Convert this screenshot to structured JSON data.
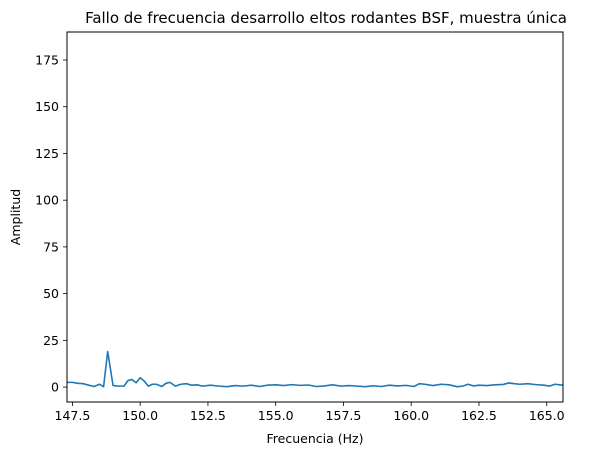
{
  "chart_data": {
    "type": "line",
    "title": "Fallo de frecuencia desarrollo eltos rodantes BSF, muestra única",
    "xlabel": "Frecuencia (Hz)",
    "ylabel": "Amplitud",
    "xlim": [
      147.3,
      165.6
    ],
    "ylim": [
      -8,
      190
    ],
    "xticks": [
      147.5,
      150.0,
      152.5,
      155.0,
      157.5,
      160.0,
      162.5,
      165.0
    ],
    "xtick_labels": [
      "147.5",
      "150.0",
      "152.5",
      "155.0",
      "157.5",
      "160.0",
      "162.5",
      "165.0"
    ],
    "yticks": [
      0,
      25,
      50,
      75,
      100,
      125,
      150,
      175
    ],
    "ytick_labels": [
      "0",
      "25",
      "50",
      "75",
      "100",
      "125",
      "150",
      "175"
    ],
    "grid": false,
    "series": [
      {
        "color": "#1f77b4",
        "x": [
          147.3,
          147.5,
          147.7,
          147.9,
          148.1,
          148.3,
          148.5,
          148.65,
          148.8,
          149.0,
          149.2,
          149.4,
          149.55,
          149.7,
          149.85,
          150.0,
          150.15,
          150.3,
          150.45,
          150.6,
          150.8,
          150.95,
          151.1,
          151.3,
          151.5,
          151.7,
          151.9,
          152.1,
          152.3,
          152.6,
          152.9,
          153.2,
          153.5,
          153.8,
          154.1,
          154.4,
          154.7,
          155.0,
          155.3,
          155.6,
          155.9,
          156.2,
          156.5,
          156.8,
          157.1,
          157.4,
          157.7,
          158.0,
          158.3,
          158.6,
          158.9,
          159.2,
          159.5,
          159.8,
          160.1,
          160.3,
          160.5,
          160.8,
          161.1,
          161.4,
          161.7,
          161.9,
          162.1,
          162.3,
          162.5,
          162.8,
          163.1,
          163.4,
          163.6,
          163.8,
          164.0,
          164.3,
          164.6,
          164.9,
          165.1,
          165.3,
          165.6
        ],
        "y": [
          2.5,
          2.5,
          2.0,
          1.8,
          1.0,
          0.3,
          1.5,
          0.2,
          19.0,
          0.8,
          0.5,
          0.5,
          3.5,
          4.0,
          2.3,
          5.0,
          3.2,
          0.5,
          1.5,
          1.5,
          0.3,
          2.0,
          2.5,
          0.5,
          1.5,
          1.8,
          1.0,
          1.2,
          0.5,
          1.0,
          0.5,
          0.2,
          0.8,
          0.5,
          1.0,
          0.3,
          1.0,
          1.2,
          0.8,
          1.3,
          0.9,
          1.1,
          0.3,
          0.6,
          1.2,
          0.5,
          0.8,
          0.5,
          0.2,
          0.7,
          0.3,
          1.0,
          0.6,
          0.9,
          0.3,
          1.8,
          1.5,
          0.8,
          1.5,
          1.2,
          0.2,
          0.5,
          1.5,
          0.6,
          1.0,
          0.8,
          1.2,
          1.4,
          2.2,
          1.8,
          1.5,
          1.8,
          1.3,
          1.0,
          0.5,
          1.5,
          1.0
        ]
      }
    ]
  }
}
